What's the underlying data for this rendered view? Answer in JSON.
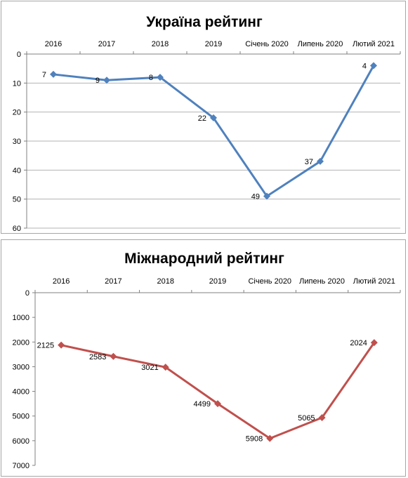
{
  "chart_data": [
    {
      "type": "line",
      "title": "Україна рейтинг",
      "categories": [
        "2016",
        "2017",
        "2018",
        "2019",
        "Січень 2020",
        "Липень 2020",
        "Лютий 2021"
      ],
      "series": [
        {
          "values": [
            7,
            9,
            8,
            22,
            49,
            37,
            4
          ],
          "color": "#4f81bd",
          "marker": "diamond"
        }
      ],
      "data_labels": [
        "7",
        "9",
        "8",
        "22",
        "49",
        "37",
        "4"
      ],
      "ylim": [
        0,
        60
      ],
      "y_ticks": [
        0,
        10,
        20,
        30,
        40,
        50,
        60
      ],
      "y_tick_labels": [
        "0",
        "10",
        "20",
        "30",
        "40",
        "50",
        "60"
      ],
      "y_reversed": true,
      "x_axis_position": "top",
      "grid": "horizontal",
      "xlabel": "",
      "ylabel": ""
    },
    {
      "type": "line",
      "title": "Міжнародний рейтинг",
      "categories": [
        "2016",
        "2017",
        "2018",
        "2019",
        "Січень 2020",
        "Липень 2020",
        "Лютий 2021"
      ],
      "series": [
        {
          "values": [
            2125,
            2583,
            3021,
            4499,
            5908,
            5065,
            2024
          ],
          "color": "#c0504d",
          "marker": "diamond"
        }
      ],
      "data_labels": [
        "2125",
        "2583",
        "3021",
        "4499",
        "5908",
        "5065",
        "2024"
      ],
      "ylim": [
        0,
        7000
      ],
      "y_ticks": [
        0,
        1000,
        2000,
        3000,
        4000,
        5000,
        6000,
        7000
      ],
      "y_tick_labels": [
        "0",
        "1000",
        "2000",
        "3000",
        "4000",
        "5000",
        "6000",
        "7000"
      ],
      "y_reversed": true,
      "x_axis_position": "top",
      "grid": "none",
      "xlabel": "",
      "ylabel": ""
    }
  ]
}
